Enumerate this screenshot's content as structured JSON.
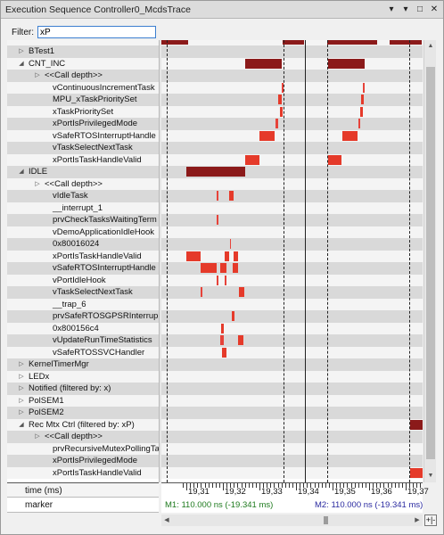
{
  "window": {
    "title": "Execution Sequence Controller0_McdsTrace",
    "buttons": {
      "dropdown": "▾",
      "pin": "▾",
      "close": "✕",
      "maximize": "□"
    }
  },
  "filter": {
    "label": "Filter:",
    "value": "xP"
  },
  "tree": {
    "rows": [
      {
        "label": "BTest1",
        "indent": 1,
        "arrow": "▷"
      },
      {
        "label": "CNT_INC",
        "indent": 1,
        "arrow": "◢"
      },
      {
        "label": "<<Call depth>>",
        "indent": 2,
        "arrow": "▷"
      },
      {
        "label": "vContinuousIncrementTask",
        "indent": 2,
        "arrow": ""
      },
      {
        "label": "MPU_xTaskPrioritySet",
        "indent": 2,
        "arrow": ""
      },
      {
        "label": "xTaskPrioritySet",
        "indent": 2,
        "arrow": ""
      },
      {
        "label": "xPortIsPrivilegedMode",
        "indent": 2,
        "arrow": ""
      },
      {
        "label": "vSafeRTOSInterruptHandle",
        "indent": 2,
        "arrow": ""
      },
      {
        "label": "vTaskSelectNextTask",
        "indent": 2,
        "arrow": ""
      },
      {
        "label": "xPortIsTaskHandleValid",
        "indent": 2,
        "arrow": ""
      },
      {
        "label": "IDLE",
        "indent": 1,
        "arrow": "◢"
      },
      {
        "label": "<<Call depth>>",
        "indent": 2,
        "arrow": "▷"
      },
      {
        "label": "vIdleTask",
        "indent": 2,
        "arrow": ""
      },
      {
        "label": "__interrupt_1",
        "indent": 2,
        "arrow": ""
      },
      {
        "label": "prvCheckTasksWaitingTerm",
        "indent": 2,
        "arrow": ""
      },
      {
        "label": "vDemoApplicationIdleHook",
        "indent": 2,
        "arrow": ""
      },
      {
        "label": "0x80016024",
        "indent": 2,
        "arrow": ""
      },
      {
        "label": "xPortIsTaskHandleValid",
        "indent": 2,
        "arrow": ""
      },
      {
        "label": "vSafeRTOSInterruptHandle",
        "indent": 2,
        "arrow": ""
      },
      {
        "label": "vPortIdleHook",
        "indent": 2,
        "arrow": ""
      },
      {
        "label": "vTaskSelectNextTask",
        "indent": 2,
        "arrow": ""
      },
      {
        "label": "__trap_6",
        "indent": 2,
        "arrow": ""
      },
      {
        "label": "prvSafeRTOSGPSRInterrup",
        "indent": 2,
        "arrow": ""
      },
      {
        "label": "0x800156c4",
        "indent": 2,
        "arrow": ""
      },
      {
        "label": "vUpdateRunTimeStatistics",
        "indent": 2,
        "arrow": ""
      },
      {
        "label": "vSafeRTOSSVCHandler",
        "indent": 2,
        "arrow": ""
      },
      {
        "label": "KernelTimerMgr",
        "indent": 1,
        "arrow": "▷"
      },
      {
        "label": "LEDx",
        "indent": 1,
        "arrow": "▷"
      },
      {
        "label": "Notified (filtered by: x)",
        "indent": 1,
        "arrow": "▷"
      },
      {
        "label": "PolSEM1",
        "indent": 1,
        "arrow": "▷"
      },
      {
        "label": "PolSEM2",
        "indent": 1,
        "arrow": "▷"
      },
      {
        "label": "Rec Mtx Ctrl (filtered by: xP)",
        "indent": 1,
        "arrow": "◢"
      },
      {
        "label": "<<Call depth>>",
        "indent": 2,
        "arrow": "▷"
      },
      {
        "label": "prvRecursiveMutexPollingTa",
        "indent": 2,
        "arrow": ""
      },
      {
        "label": "xPortIsPrivilegedMode",
        "indent": 2,
        "arrow": ""
      },
      {
        "label": "xPortIsTaskHandleValid",
        "indent": 2,
        "arrow": ""
      }
    ]
  },
  "bottom": {
    "time_label": "time (ms)",
    "marker_label": "marker",
    "axis_ticks": [
      "19,31",
      "19,32",
      "19,33",
      "19,34",
      "19,35",
      "19,36",
      "19,37"
    ],
    "m1_text": "M1:  110.000 ns    (-19.341 ms)",
    "m2_text": "M2:  110.000 ns    (-19.341 ms)",
    "corner_button": "+|-"
  },
  "colors": {
    "dark_event": "#8b1a1a",
    "red_event": "#e53a2a",
    "m1": "#1e7a1e",
    "m2": "#2a2aa0"
  }
}
